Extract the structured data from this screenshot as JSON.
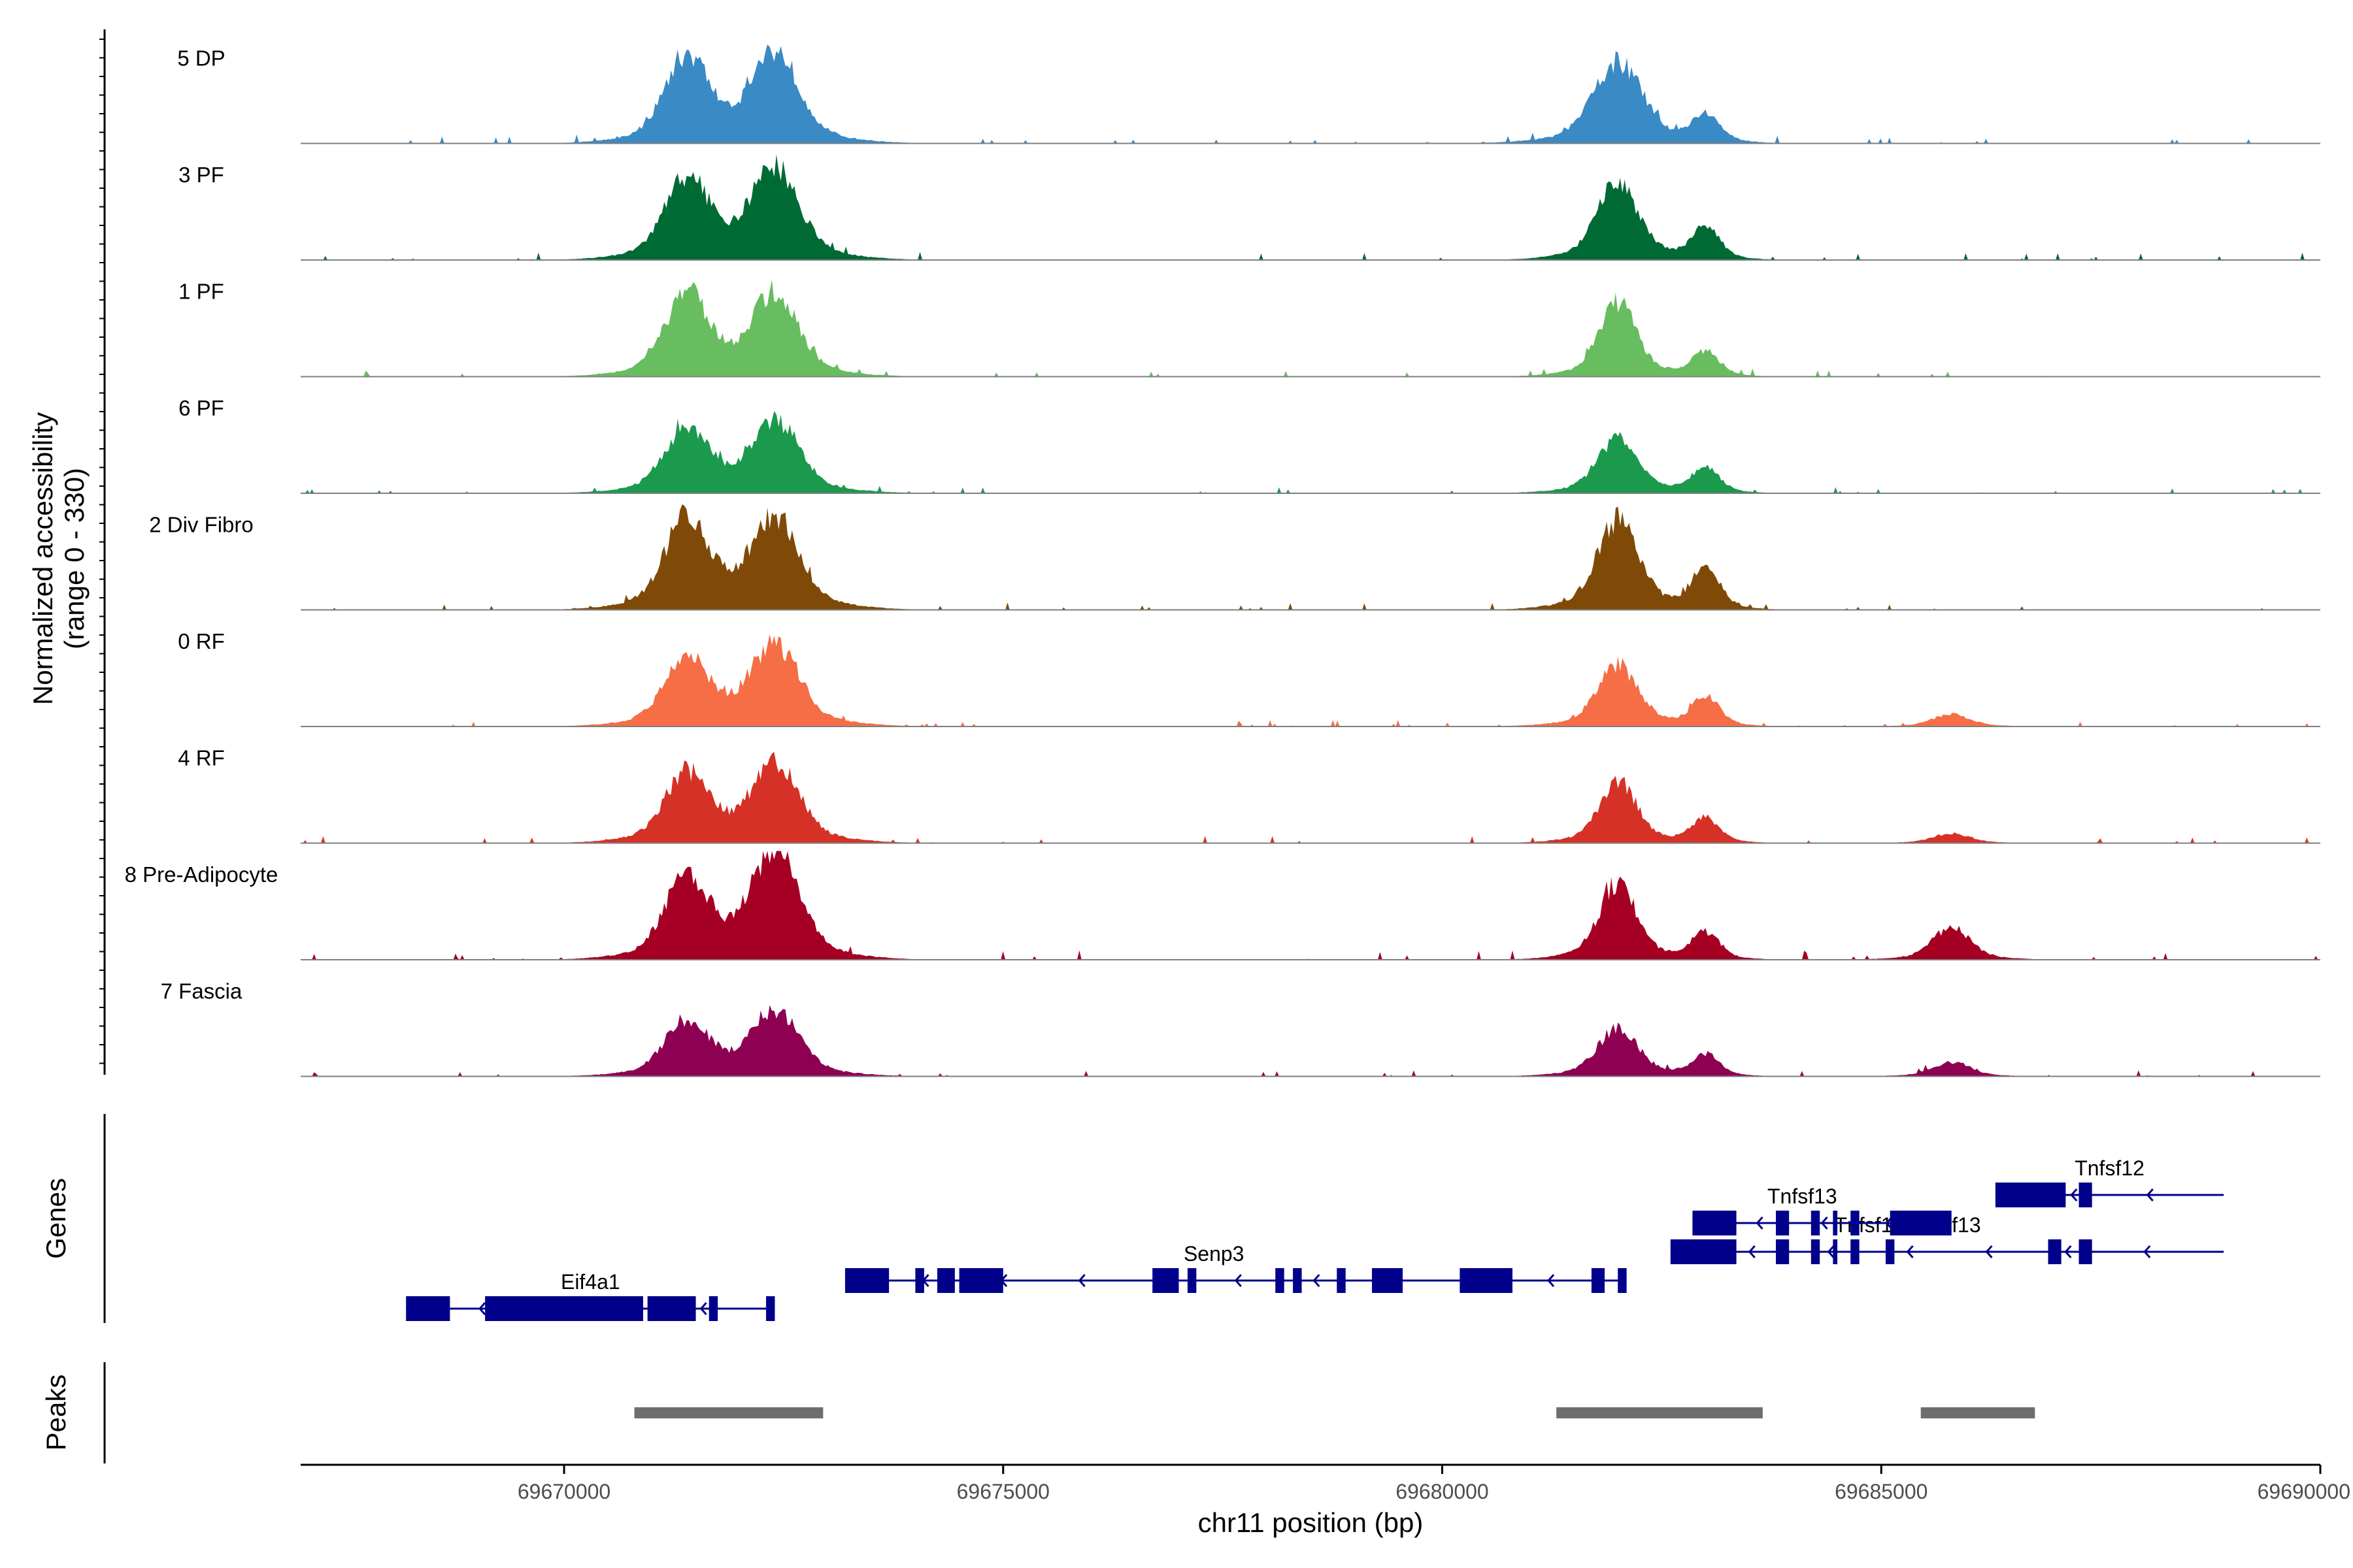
{
  "chart_data": {
    "type": "area",
    "title": "",
    "region": {
      "chromosome": "chr11",
      "start": 69667000,
      "end": 69690000
    },
    "ylabel_line1": "Normalized accessibility",
    "ylabel_line2": "(range 0 - 330)",
    "ylim": [
      0,
      330
    ],
    "xlabel": "chr11 position (bp)",
    "xticks": [
      69670000,
      69675000,
      69680000,
      69685000,
      69690000
    ],
    "xtick_labels": [
      "69670000",
      "69675000",
      "69680000",
      "69685000",
      "69690000"
    ],
    "series": [
      {
        "name": "5 DP",
        "color": "#3a8ac5",
        "scale": 1.0,
        "peaks": [
          [
            69671400,
            240,
            0.95
          ],
          [
            69672400,
            260,
            1.0
          ],
          [
            69682000,
            260,
            0.9
          ],
          [
            69683000,
            150,
            0.3
          ]
        ]
      },
      {
        "name": "3 PF",
        "color": "#006a35",
        "scale": 1.0,
        "peaks": [
          [
            69671400,
            240,
            0.9
          ],
          [
            69672400,
            260,
            1.0
          ],
          [
            69682000,
            220,
            0.85
          ],
          [
            69683000,
            150,
            0.35
          ]
        ]
      },
      {
        "name": "1 PF",
        "color": "#67bd5f",
        "scale": 0.9,
        "peaks": [
          [
            69671400,
            240,
            1.0
          ],
          [
            69672400,
            250,
            1.0
          ],
          [
            69682000,
            200,
            0.9
          ],
          [
            69683000,
            150,
            0.3
          ]
        ]
      },
      {
        "name": "6 PF",
        "color": "#1b9a4d",
        "scale": 0.8,
        "peaks": [
          [
            69671400,
            240,
            0.9
          ],
          [
            69672400,
            260,
            1.0
          ],
          [
            69682000,
            220,
            0.75
          ],
          [
            69683000,
            150,
            0.35
          ]
        ]
      },
      {
        "name": "2 Div Fibro",
        "color": "#7f4a08",
        "scale": 1.0,
        "peaks": [
          [
            69671400,
            240,
            1.0
          ],
          [
            69672400,
            260,
            1.0
          ],
          [
            69682000,
            220,
            1.0
          ],
          [
            69683000,
            150,
            0.45
          ]
        ]
      },
      {
        "name": "0 RF",
        "color": "#f56e45",
        "scale": 0.9,
        "peaks": [
          [
            69671400,
            240,
            0.85
          ],
          [
            69672400,
            260,
            1.0
          ],
          [
            69682000,
            220,
            0.75
          ],
          [
            69683000,
            150,
            0.35
          ],
          [
            69685800,
            200,
            0.15
          ]
        ]
      },
      {
        "name": "4 RF",
        "color": "#d63127",
        "scale": 0.9,
        "peaks": [
          [
            69671400,
            240,
            0.85
          ],
          [
            69672400,
            260,
            0.95
          ],
          [
            69682000,
            200,
            0.75
          ],
          [
            69683000,
            150,
            0.3
          ],
          [
            69685800,
            200,
            0.12
          ]
        ]
      },
      {
        "name": "8 Pre-Adipocyte",
        "color": "#a50024",
        "scale": 1.2,
        "peaks": [
          [
            69671400,
            240,
            0.75
          ],
          [
            69672400,
            260,
            1.0
          ],
          [
            69682000,
            200,
            0.7
          ],
          [
            69683000,
            150,
            0.25
          ],
          [
            69685800,
            200,
            0.3
          ]
        ]
      },
      {
        "name": "7 Fascia",
        "color": "#8e0152",
        "scale": 0.8,
        "peaks": [
          [
            69671400,
            240,
            0.75
          ],
          [
            69672400,
            260,
            0.9
          ],
          [
            69682000,
            220,
            0.65
          ],
          [
            69683000,
            150,
            0.3
          ],
          [
            69685800,
            200,
            0.2
          ]
        ]
      }
    ],
    "genes_title": "Genes",
    "genes": [
      {
        "name": "Eif4a1",
        "row": 0,
        "strand": "-",
        "start": 69668200,
        "end": 69672400,
        "label_pos": 69670300,
        "exons": [
          [
            69668200,
            69668700
          ],
          [
            69669100,
            69670900
          ],
          [
            69670950,
            69671500
          ],
          [
            69671650,
            69671750
          ],
          [
            69672300,
            69672400
          ]
        ]
      },
      {
        "name": "Senp3",
        "row": 1,
        "strand": "-",
        "start": 69673200,
        "end": 69682100,
        "label_pos": 69677400,
        "exons": [
          [
            69673200,
            69673700
          ],
          [
            69674000,
            69674100
          ],
          [
            69674250,
            69674450
          ],
          [
            69674500,
            69675000
          ],
          [
            69676700,
            69677000
          ],
          [
            69677100,
            69677200
          ],
          [
            69678100,
            69678200
          ],
          [
            69678300,
            69678400
          ],
          [
            69678800,
            69678900
          ],
          [
            69679200,
            69679550
          ],
          [
            69680200,
            69680800
          ],
          [
            69681700,
            69681850
          ],
          [
            69682000,
            69682100
          ]
        ]
      },
      {
        "name": "Tnfsf12-Tnfsf13",
        "row": 2,
        "strand": "-",
        "start": 69682600,
        "end": 69688900,
        "label_pos": 69685300,
        "exons": [
          [
            69682600,
            69683350
          ],
          [
            69683800,
            69683950
          ],
          [
            69684200,
            69684300
          ],
          [
            69684450,
            69684500
          ],
          [
            69684650,
            69684750
          ],
          [
            69685050,
            69685150
          ],
          [
            69686900,
            69687050
          ],
          [
            69687250,
            69687400
          ]
        ]
      },
      {
        "name": "Tnfsf13",
        "row": 3,
        "strand": "-",
        "start": 69682850,
        "end": 69685800,
        "label_pos": 69684100,
        "exons": [
          [
            69682850,
            69683350
          ],
          [
            69683800,
            69683950
          ],
          [
            69684200,
            69684300
          ],
          [
            69684450,
            69684500
          ],
          [
            69684650,
            69684750
          ],
          [
            69685100,
            69685800
          ]
        ]
      },
      {
        "name": "Tnfsf12",
        "row": 4,
        "strand": "-",
        "start": 69686300,
        "end": 69688900,
        "label_pos": 69687600,
        "exons": [
          [
            69686300,
            69687100
          ],
          [
            69687250,
            69687400
          ]
        ]
      }
    ],
    "peaks_title": "Peaks",
    "peak_regions": [
      [
        69670800,
        69672950
      ],
      [
        69681300,
        69683650
      ],
      [
        69685450,
        69686750
      ]
    ]
  }
}
